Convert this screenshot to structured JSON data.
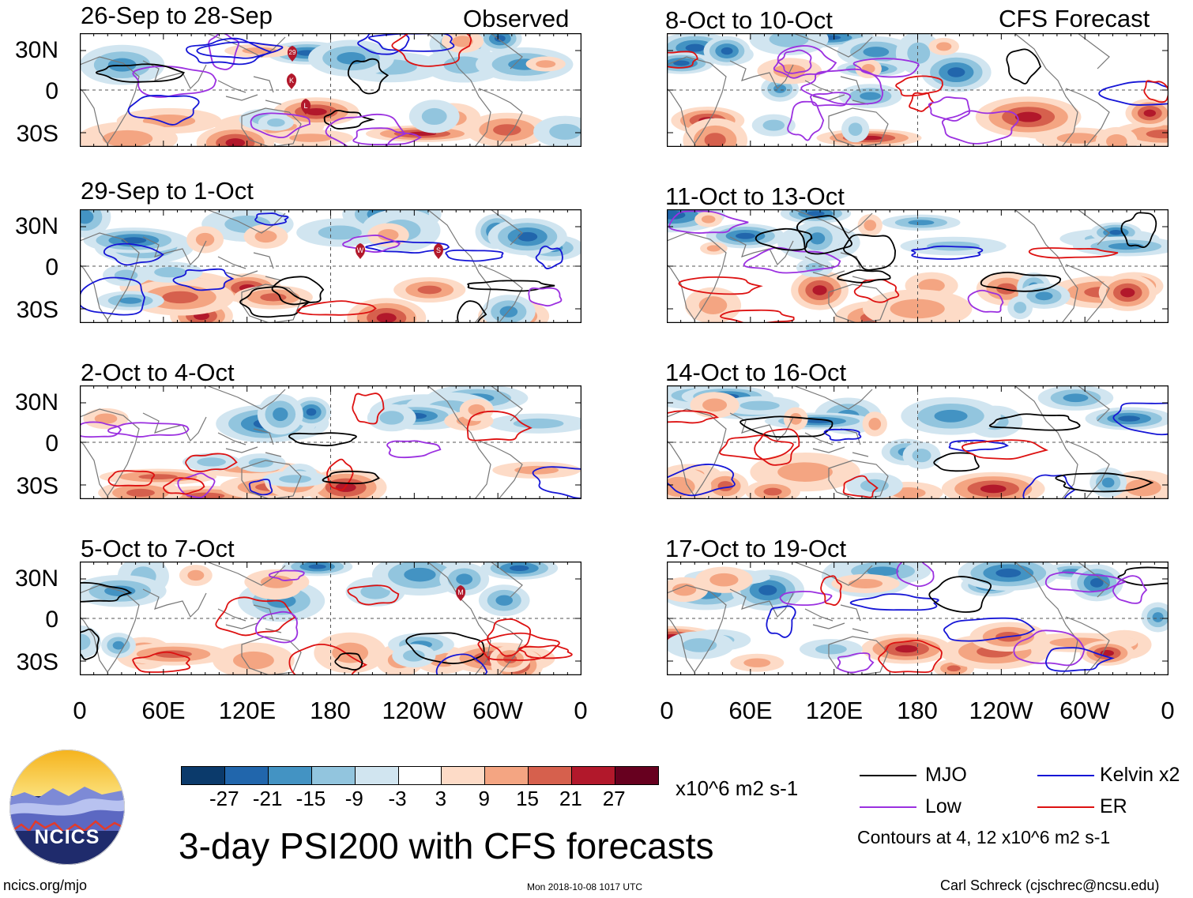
{
  "header": {
    "left_title": "Observed",
    "right_title": "CFS Forecast"
  },
  "panels": {
    "observed": [
      {
        "period": "26-Sep to 28-Sep"
      },
      {
        "period": "29-Sep to 1-Oct"
      },
      {
        "period": "2-Oct to 4-Oct"
      },
      {
        "period": "5-Oct to 7-Oct"
      }
    ],
    "forecast": [
      {
        "period": "8-Oct to 10-Oct"
      },
      {
        "period": "11-Oct to 13-Oct"
      },
      {
        "period": "14-Oct to 16-Oct"
      },
      {
        "period": "17-Oct to 19-Oct"
      }
    ]
  },
  "axes": {
    "lat_labels": [
      "30N",
      "0",
      "30S"
    ],
    "lon_labels": [
      "0",
      "60E",
      "120E",
      "180",
      "120W",
      "60W",
      "0"
    ]
  },
  "storm_markers": {
    "panel1": [
      "29",
      "K",
      "L"
    ],
    "panel2": [
      "W",
      "S"
    ],
    "panel4": [
      "M"
    ]
  },
  "colorbar": {
    "colors": [
      "#0b3a6b",
      "#2166ac",
      "#4393c3",
      "#92c5de",
      "#d1e5f0",
      "#ffffff",
      "#fddbc7",
      "#f4a582",
      "#d6604d",
      "#b2182b",
      "#67001f"
    ],
    "ticks": [
      "-27",
      "-21",
      "-15",
      "-9",
      "-3",
      "3",
      "9",
      "15",
      "21",
      "27"
    ],
    "units": "x10^6 m2 s-1"
  },
  "legend": {
    "mjo": "MJO",
    "kelvin": "Kelvin x2",
    "low": "Low",
    "er": "ER",
    "contours_note": "Contours at 4, 12 x10^6 m2 s-1",
    "colors": {
      "mjo": "#000000",
      "kelvin": "#1515d6",
      "low": "#9b30e0",
      "er": "#dd1111"
    }
  },
  "title": "3-day PSI200 with CFS forecasts",
  "logo": {
    "text": "NCICS"
  },
  "footer": {
    "url": "ncics.org/mjo",
    "timestamp": "Mon 2018-10-08 1017 UTC",
    "author": "Carl Schreck (cjschrec@ncsu.edu)"
  }
}
